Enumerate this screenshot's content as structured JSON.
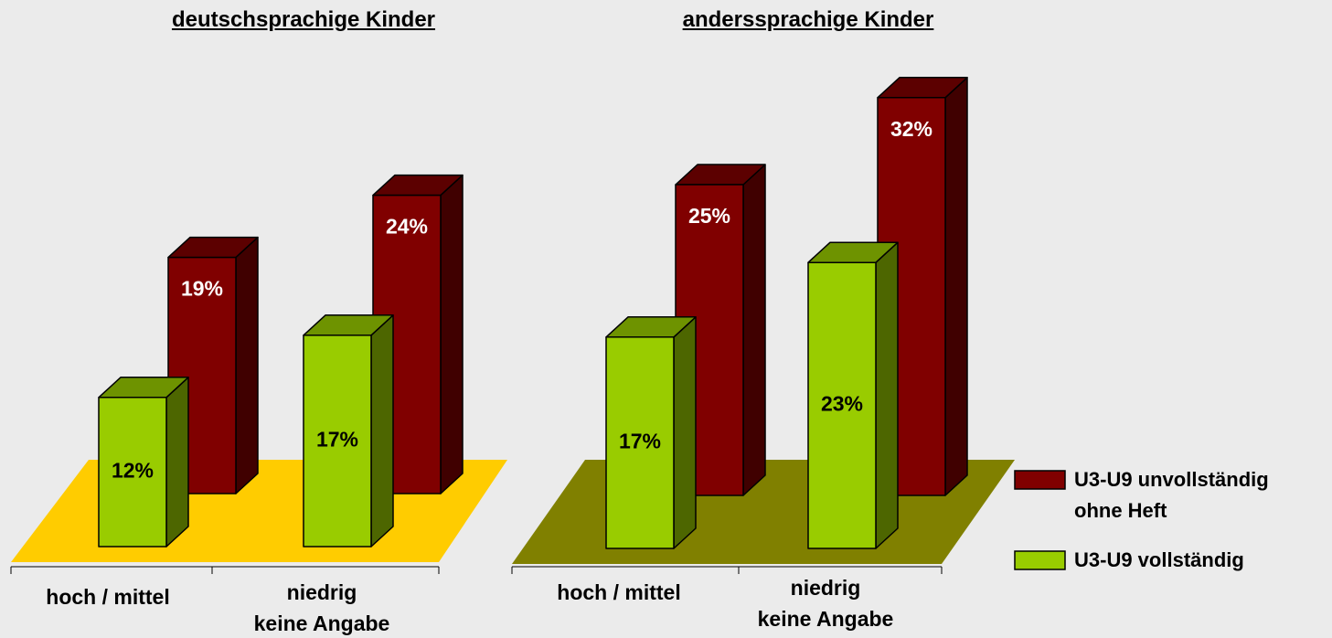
{
  "chart_data": [
    {
      "type": "bar3d",
      "title": "deutschsprachige Kinder",
      "categories": [
        "hoch / mittel",
        "niedrig\nkeine Angabe"
      ],
      "floor_color": "#ffcc00",
      "series": [
        {
          "color": "#800000",
          "values": [
            19,
            24
          ],
          "value_labels": [
            "19%",
            "24%"
          ]
        },
        {
          "color": "#99cc00",
          "values": [
            12,
            17
          ],
          "value_labels": [
            "12%",
            "17%"
          ]
        }
      ]
    },
    {
      "type": "bar3d",
      "title": "anderssprachige Kinder",
      "categories": [
        "hoch / mittel",
        "niedrig\nkeine Angabe"
      ],
      "floor_color": "#808000",
      "series": [
        {
          "name": "U3-U9 unvollständig\nohne Heft",
          "color": "#800000",
          "values": [
            25,
            32
          ],
          "value_labels": [
            "25%",
            "32%"
          ]
        },
        {
          "name": "U3-U9 vollständig",
          "color": "#99cc00",
          "values": [
            17,
            23
          ],
          "value_labels": [
            "17%",
            "23%"
          ]
        }
      ]
    }
  ]
}
